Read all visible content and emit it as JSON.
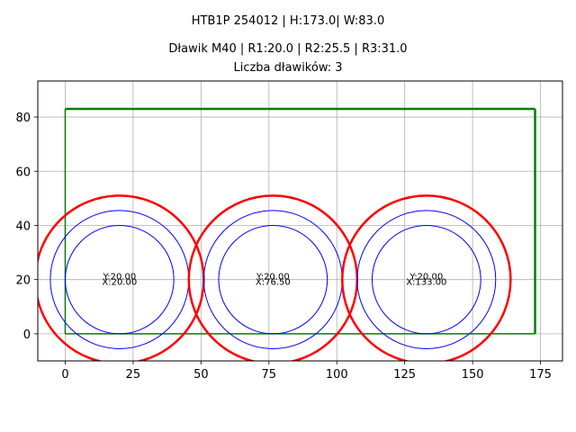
{
  "titles": {
    "line1": "HTB1P 254012 | H:173.0| W:83.0",
    "line2": "Dławik M40 | R1:20.0 | R2:25.5 | R3:31.0",
    "line3": "Liczba dławików: 3"
  },
  "chart_data": {
    "type": "scatter",
    "title": "HTB1P 254012 | H:173.0| W:83.0\nDławik M40 | R1:20.0 | R2:25.5 | R3:31.0\nLiczba dławików: 3",
    "xlabel": "",
    "ylabel": "",
    "xlim": [
      -10.1,
      183.1
    ],
    "ylim": [
      -10,
      93.3
    ],
    "grid": true,
    "xticks": [
      0,
      25,
      50,
      75,
      100,
      125,
      150,
      175
    ],
    "yticks": [
      0,
      20,
      40,
      60,
      80
    ],
    "rectangle": {
      "x": 0,
      "y": 0,
      "width": 173.0,
      "height": 83.0,
      "color": "#008000"
    },
    "radii": {
      "R1": 20.0,
      "R2": 25.5,
      "R3": 31.0
    },
    "circle_colors": {
      "R1": "#0000ff",
      "R2": "#0000ff",
      "R3": "#ff0000"
    },
    "glands": [
      {
        "x": 20.0,
        "y": 20.0,
        "label_x": "X:20.00",
        "label_y": "Y:20.00"
      },
      {
        "x": 76.5,
        "y": 20.0,
        "label_x": "X:76.50",
        "label_y": "Y:20.00"
      },
      {
        "x": 133.0,
        "y": 20.0,
        "label_x": "X:133.00",
        "label_y": "Y:20.00"
      }
    ]
  }
}
